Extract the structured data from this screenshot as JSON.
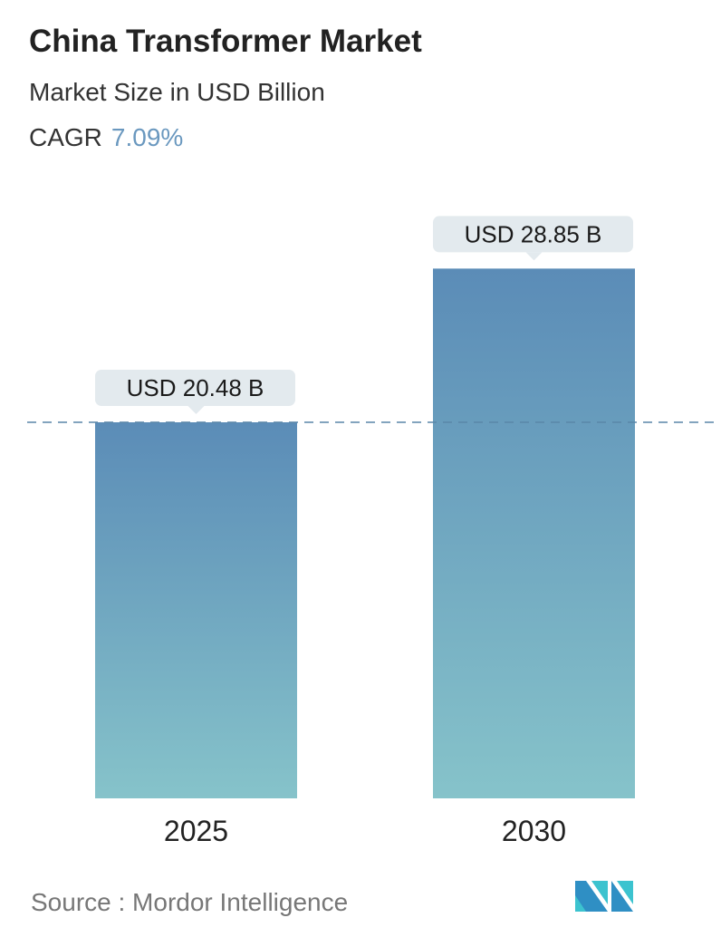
{
  "header": {
    "title": "China Transformer Market",
    "subtitle": "Market Size in USD Billion",
    "cagr_label": "CAGR",
    "cagr_value": "7.09%"
  },
  "chart_data": {
    "type": "bar",
    "title": "China Transformer Market",
    "ylabel": "Market Size in USD Billion",
    "categories": [
      "2025",
      "2030"
    ],
    "values": [
      20.48,
      28.85
    ],
    "data_labels": [
      "USD 20.48 B",
      "USD 28.85 B"
    ],
    "ylim": [
      0,
      30
    ],
    "grid": false,
    "reference_line": "dashed line at 2025 value",
    "colors": {
      "bar_top": "#5b8cb7",
      "bar_bottom": "#86c3ca",
      "label_bg": "#e3eaee",
      "dash": "#5a86a8"
    }
  },
  "footer": {
    "source": "Source :  Mordor Intelligence",
    "logo": "MN"
  }
}
